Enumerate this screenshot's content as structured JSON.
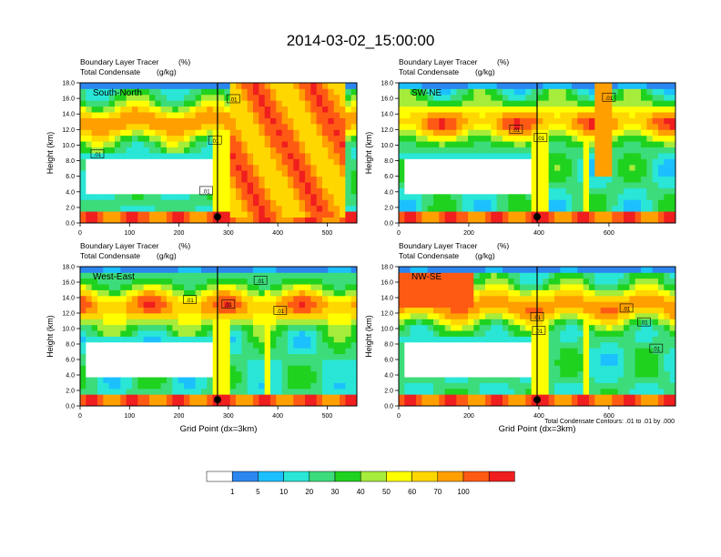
{
  "title": "2014-03-02_15:00:00",
  "colors": {
    "levels": [
      "#ffffff",
      "#2b86f0",
      "#1cc0ff",
      "#29e6d6",
      "#3cdc7a",
      "#1fd21f",
      "#a6ec3a",
      "#ffff00",
      "#ffd700",
      "#ff9f00",
      "#ff5a14",
      "#f01e1e"
    ],
    "contour": "#000000",
    "marker": "#000000"
  },
  "chart_data": [
    {
      "type": "heatmap",
      "panel": "South-North",
      "label": "South-North",
      "subtitle_left": "Boundary Layer Tracer",
      "subtitle_right": "(%)",
      "subtitle2_left": "Total Condensate",
      "subtitle2_right": "(g/kg)",
      "ylabel": "Height (km)",
      "xlabel": "",
      "xlim": [
        0,
        560
      ],
      "ylim": [
        0,
        18
      ],
      "xticks": [
        0,
        100,
        200,
        300,
        400,
        500
      ],
      "yticks": [
        "0.0",
        "2.0",
        "4.0",
        "6.0",
        "8.0",
        "10.0",
        "12.0",
        "14.0",
        "16.0",
        "18.0"
      ],
      "marker_x": 278,
      "contour_labels": [
        {
          "text": ".01",
          "x": 35,
          "y": 8.8
        },
        {
          "text": ".01",
          "x": 310,
          "y": 15.9
        },
        {
          "text": ".01",
          "x": 273,
          "y": 10.6
        },
        {
          "text": ".01",
          "x": 255,
          "y": 4.1
        }
      ]
    },
    {
      "type": "heatmap",
      "panel": "SW-NE",
      "label": "SW-NE",
      "subtitle_left": "Boundary Layer Tracer",
      "subtitle_right": "(%)",
      "subtitle2_left": "Total Condensate",
      "subtitle2_right": "(g/kg)",
      "ylabel": "Height (km)",
      "xlabel": "",
      "xlim": [
        0,
        790
      ],
      "ylim": [
        0,
        18
      ],
      "xticks": [
        0,
        200,
        400,
        600
      ],
      "yticks": [
        "0.0",
        "2.0",
        "4.0",
        "6.0",
        "8.0",
        "10.0",
        "12.0",
        "14.0",
        "16.0",
        "18.0"
      ],
      "marker_x": 395,
      "contour_labels": [
        {
          "text": ".01",
          "x": 600,
          "y": 16.1
        },
        {
          "text": ".01",
          "x": 335,
          "y": 12.0
        },
        {
          "text": ".01",
          "x": 405,
          "y": 10.9
        }
      ]
    },
    {
      "type": "heatmap",
      "panel": "West-East",
      "label": "West-East",
      "subtitle_left": "Boundary Layer Tracer",
      "subtitle_right": "(%)",
      "subtitle2_left": "Total Condensate",
      "subtitle2_right": "(g/kg)",
      "ylabel": "Height (km)",
      "xlabel": "Grid Point (dx=3km)",
      "xlim": [
        0,
        560
      ],
      "ylim": [
        0,
        18
      ],
      "xticks": [
        0,
        100,
        200,
        300,
        400,
        500
      ],
      "yticks": [
        "0.0",
        "2.0",
        "4.0",
        "6.0",
        "8.0",
        "10.0",
        "12.0",
        "14.0",
        "16.0",
        "18.0"
      ],
      "marker_x": 278,
      "contour_labels": [
        {
          "text": ".01",
          "x": 222,
          "y": 13.7
        },
        {
          "text": ".01",
          "x": 300,
          "y": 13.1
        },
        {
          "text": ".01",
          "x": 405,
          "y": 12.3
        },
        {
          "text": ".01",
          "x": 365,
          "y": 16.2
        }
      ]
    },
    {
      "type": "heatmap",
      "panel": "NW-SE",
      "label": "NW-SE",
      "subtitle_left": "Boundary Layer Tracer",
      "subtitle_right": "(%)",
      "subtitle2_left": "Total Condensate",
      "subtitle2_right": "(g/kg)",
      "ylabel": "Height (km)",
      "xlabel": "Grid Point (dx=3km)",
      "xlim": [
        0,
        790
      ],
      "ylim": [
        0,
        18
      ],
      "xticks": [
        0,
        200,
        400,
        600
      ],
      "yticks": [
        "0.0",
        "2.0",
        "4.0",
        "6.0",
        "8.0",
        "10.0",
        "12.0",
        "14.0",
        "16.0",
        "18.0"
      ],
      "marker_x": 395,
      "contour_labels": [
        {
          "text": ".01",
          "x": 395,
          "y": 11.5
        },
        {
          "text": ".01",
          "x": 400,
          "y": 9.7
        },
        {
          "text": ".01",
          "x": 650,
          "y": 12.6
        },
        {
          "text": ".01",
          "x": 700,
          "y": 10.8
        },
        {
          "text": ".01",
          "x": 735,
          "y": 7.4
        }
      ]
    }
  ],
  "contour_note": "Total Condensate Contours: .01 to .01 by .000",
  "colorbar": {
    "labels": [
      "1",
      "5",
      "10",
      "20",
      "30",
      "40",
      "50",
      "60",
      "70",
      "100"
    ]
  }
}
